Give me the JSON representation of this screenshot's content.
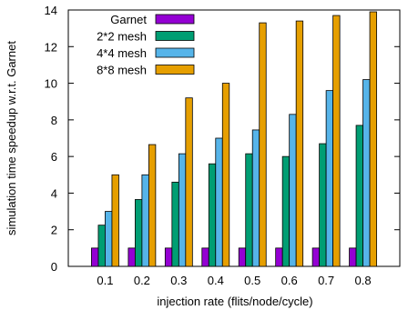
{
  "chart_data": {
    "type": "bar",
    "title": "",
    "xlabel": "injection rate (flits/node/cycle)",
    "ylabel": "simulation time speedup w.r.t. Garnet",
    "categories": [
      "0.1",
      "0.2",
      "0.3",
      "0.4",
      "0.5",
      "0.6",
      "0.7",
      "0.8"
    ],
    "ylim": [
      0,
      14
    ],
    "yticks": [
      0,
      2,
      4,
      6,
      8,
      10,
      12,
      14
    ],
    "grid": false,
    "legend_position": "top-left",
    "series": [
      {
        "name": "Garnet",
        "color": "#9400d3",
        "values": [
          1,
          1,
          1,
          1,
          1,
          1,
          1,
          1
        ]
      },
      {
        "name": "2*2 mesh",
        "color": "#009e73",
        "values": [
          2.25,
          3.65,
          4.6,
          5.6,
          6.15,
          6.0,
          6.7,
          7.7
        ]
      },
      {
        "name": "4*4 mesh",
        "color": "#56b4e9",
        "values": [
          3.0,
          5.0,
          6.15,
          7.0,
          7.45,
          8.3,
          9.6,
          10.2
        ]
      },
      {
        "name": "8*8 mesh",
        "color": "#e69f00",
        "values": [
          5.0,
          6.65,
          9.2,
          10.0,
          13.3,
          13.4,
          13.7,
          13.9
        ]
      }
    ]
  }
}
